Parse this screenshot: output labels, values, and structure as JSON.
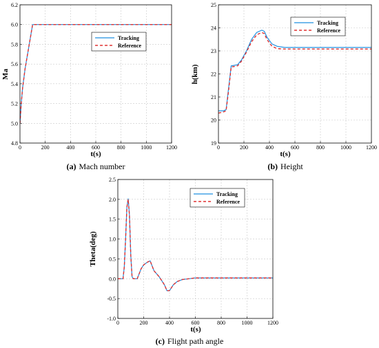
{
  "colors": {
    "tracking": "#1f8fe0",
    "reference": "#e03030",
    "grid": "#c8c8c8"
  },
  "chart_data": [
    {
      "type": "line",
      "caption_letter": "(a)",
      "caption_text": "Mach number",
      "xlabel": "t(s)",
      "ylabel": "Ma",
      "xlim": [
        0,
        1200
      ],
      "ylim": [
        4.8,
        6.2
      ],
      "xticks": [
        "0",
        "200",
        "400",
        "600",
        "800",
        "1000",
        "1200"
      ],
      "yticks": [
        "4.8",
        "5.0",
        "5.2",
        "5.4",
        "5.6",
        "5.8",
        "6.0",
        "6.2"
      ],
      "grid": true,
      "legend_position": "top-right",
      "series": [
        {
          "name": "Tracking",
          "style": "solid",
          "x": [
            0,
            10,
            20,
            40,
            60,
            80,
            100,
            150,
            200,
            400,
            600,
            800,
            1000,
            1200
          ],
          "y": [
            5.0,
            5.2,
            5.35,
            5.55,
            5.7,
            5.85,
            6.0,
            6.0,
            6.0,
            6.0,
            6.0,
            6.0,
            6.0,
            6.0
          ]
        },
        {
          "name": "Reference",
          "style": "dashed",
          "x": [
            0,
            10,
            20,
            40,
            60,
            80,
            100,
            150,
            200,
            400,
            600,
            800,
            1000,
            1200
          ],
          "y": [
            5.0,
            5.2,
            5.35,
            5.55,
            5.7,
            5.85,
            6.0,
            6.0,
            6.0,
            6.0,
            6.0,
            6.0,
            6.0,
            6.0
          ]
        }
      ]
    },
    {
      "type": "line",
      "caption_letter": "(b)",
      "caption_text": "Height",
      "xlabel": "t(s)",
      "ylabel": "h(km)",
      "xlim": [
        0,
        1200
      ],
      "ylim": [
        19,
        25
      ],
      "xticks": [
        "0",
        "200",
        "400",
        "600",
        "800",
        "1000",
        "1200"
      ],
      "yticks": [
        "19",
        "20",
        "21",
        "22",
        "23",
        "24",
        "25"
      ],
      "grid": true,
      "legend_position": "top-right",
      "series": [
        {
          "name": "Tracking",
          "style": "solid",
          "x": [
            0,
            40,
            60,
            80,
            100,
            150,
            180,
            220,
            260,
            300,
            340,
            360,
            380,
            420,
            460,
            520,
            600,
            800,
            1000,
            1200
          ],
          "y": [
            20.4,
            20.4,
            20.45,
            21.4,
            22.35,
            22.4,
            22.6,
            23.0,
            23.5,
            23.8,
            23.9,
            23.85,
            23.6,
            23.3,
            23.2,
            23.15,
            23.15,
            23.15,
            23.15,
            23.15
          ]
        },
        {
          "name": "Reference",
          "style": "dashed",
          "x": [
            0,
            40,
            60,
            80,
            100,
            150,
            180,
            220,
            260,
            300,
            340,
            360,
            380,
            420,
            460,
            520,
            600,
            800,
            1000,
            1200
          ],
          "y": [
            20.3,
            20.35,
            20.4,
            21.3,
            22.3,
            22.35,
            22.55,
            22.95,
            23.4,
            23.7,
            23.8,
            23.75,
            23.5,
            23.2,
            23.1,
            23.08,
            23.08,
            23.08,
            23.08,
            23.08
          ]
        }
      ]
    },
    {
      "type": "line",
      "caption_letter": "(c)",
      "caption_text": "Flight path angle",
      "xlabel": "t(s)",
      "ylabel": "Theta(deg)",
      "xlim": [
        0,
        1200
      ],
      "ylim": [
        -1.0,
        2.5
      ],
      "xticks": [
        "0",
        "200",
        "400",
        "600",
        "800",
        "1000",
        "1200"
      ],
      "yticks": [
        "-1.0",
        "-0.5",
        "0.0",
        "0.5",
        "1.0",
        "1.5",
        "2.0",
        "2.5"
      ],
      "grid": true,
      "legend_position": "top-right",
      "series": [
        {
          "name": "Tracking",
          "style": "solid",
          "x": [
            0,
            20,
            40,
            50,
            60,
            70,
            80,
            90,
            100,
            110,
            120,
            150,
            180,
            200,
            230,
            250,
            280,
            320,
            360,
            380,
            400,
            430,
            460,
            500,
            550,
            600,
            700,
            800,
            1000,
            1200
          ],
          "y": [
            0.0,
            0.0,
            0.0,
            0.3,
            1.0,
            1.8,
            2.02,
            1.6,
            0.6,
            0.05,
            0.0,
            0.0,
            0.25,
            0.35,
            0.42,
            0.45,
            0.2,
            0.05,
            -0.15,
            -0.3,
            -0.3,
            -0.15,
            -0.07,
            -0.02,
            0.0,
            0.02,
            0.02,
            0.02,
            0.02,
            0.02
          ]
        },
        {
          "name": "Reference",
          "style": "dashed",
          "x": [
            0,
            20,
            40,
            50,
            60,
            70,
            80,
            90,
            100,
            110,
            120,
            150,
            180,
            200,
            230,
            250,
            280,
            320,
            360,
            380,
            400,
            430,
            460,
            500,
            550,
            600,
            700,
            800,
            1000,
            1200
          ],
          "y": [
            0.0,
            0.0,
            0.0,
            0.3,
            1.0,
            1.8,
            2.0,
            1.6,
            0.6,
            0.05,
            0.0,
            0.0,
            0.25,
            0.35,
            0.42,
            0.45,
            0.2,
            0.05,
            -0.15,
            -0.3,
            -0.3,
            -0.15,
            -0.07,
            -0.02,
            0.0,
            0.02,
            0.02,
            0.02,
            0.02,
            0.02
          ]
        }
      ]
    }
  ]
}
